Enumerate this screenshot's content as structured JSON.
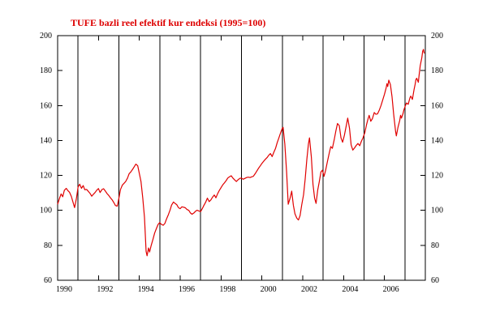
{
  "chart_data": {
    "type": "line",
    "title": "TUFE bazli reel efektif kur endeksi (1995=100)",
    "xlabel": "",
    "ylabel": "",
    "title_color": "#dd0000",
    "line_color": "#e00000",
    "axis_color": "#000000",
    "background_color": "#ffffff",
    "xlim": [
      1990,
      2008
    ],
    "ylim": [
      60,
      200
    ],
    "y_ticks": [
      60,
      80,
      100,
      120,
      140,
      160,
      180,
      200
    ],
    "y_tick_labels": [
      "60",
      "80",
      "100",
      "120",
      "140",
      "160",
      "180",
      "200"
    ],
    "y_axis_sides": [
      "left",
      "right"
    ],
    "x_tick_years": [
      1990,
      1992,
      1994,
      1996,
      1998,
      2000,
      2002,
      2004,
      2006
    ],
    "x_tick_labels": [
      "1990",
      "1992",
      "1994",
      "1996",
      "1998",
      "2000",
      "2002",
      "2004",
      "2006"
    ],
    "gridline_years": [
      1991,
      1993,
      1995,
      1997,
      1999,
      2001,
      2003,
      2005,
      2007
    ],
    "grid": "vertical-only",
    "legend": "none",
    "series": [
      {
        "name": "TUFE bazli reel efektif kur endeksi (1995=100)",
        "points": [
          [
            1990.0,
            103.5
          ],
          [
            1990.08,
            106.5
          ],
          [
            1990.17,
            109.4
          ],
          [
            1990.25,
            107.8
          ],
          [
            1990.33,
            111.5
          ],
          [
            1990.42,
            112.6
          ],
          [
            1990.5,
            111.3
          ],
          [
            1990.58,
            110.4
          ],
          [
            1990.67,
            108.0
          ],
          [
            1990.75,
            104.8
          ],
          [
            1990.83,
            101.6
          ],
          [
            1990.92,
            107.0
          ],
          [
            1991.0,
            113.4
          ],
          [
            1991.08,
            115.0
          ],
          [
            1991.17,
            112.6
          ],
          [
            1991.25,
            114.2
          ],
          [
            1991.33,
            111.8
          ],
          [
            1991.42,
            112.0
          ],
          [
            1991.5,
            110.9
          ],
          [
            1991.58,
            109.8
          ],
          [
            1991.67,
            108.1
          ],
          [
            1991.75,
            109.2
          ],
          [
            1991.83,
            110.2
          ],
          [
            1991.92,
            111.6
          ],
          [
            1992.0,
            112.5
          ],
          [
            1992.08,
            110.2
          ],
          [
            1992.17,
            111.9
          ],
          [
            1992.25,
            112.4
          ],
          [
            1992.33,
            111.2
          ],
          [
            1992.42,
            109.6
          ],
          [
            1992.5,
            108.6
          ],
          [
            1992.58,
            107.3
          ],
          [
            1992.67,
            106.0
          ],
          [
            1992.75,
            104.5
          ],
          [
            1992.83,
            102.8
          ],
          [
            1992.92,
            102.4
          ],
          [
            1993.0,
            107.0
          ],
          [
            1993.08,
            112.0
          ],
          [
            1993.17,
            114.5
          ],
          [
            1993.25,
            115.5
          ],
          [
            1993.33,
            116.5
          ],
          [
            1993.42,
            118.5
          ],
          [
            1993.5,
            121.0
          ],
          [
            1993.58,
            122.0
          ],
          [
            1993.67,
            123.5
          ],
          [
            1993.75,
            125.0
          ],
          [
            1993.83,
            126.5
          ],
          [
            1993.92,
            125.5
          ],
          [
            1994.0,
            121.0
          ],
          [
            1994.08,
            116.5
          ],
          [
            1994.17,
            107.0
          ],
          [
            1994.25,
            96.0
          ],
          [
            1994.33,
            76.5
          ],
          [
            1994.38,
            74.0
          ],
          [
            1994.45,
            78.5
          ],
          [
            1994.5,
            76.2
          ],
          [
            1994.58,
            80.0
          ],
          [
            1994.67,
            83.5
          ],
          [
            1994.75,
            87.0
          ],
          [
            1994.83,
            89.5
          ],
          [
            1994.92,
            92.0
          ],
          [
            1995.0,
            93.0
          ],
          [
            1995.08,
            92.0
          ],
          [
            1995.17,
            91.5
          ],
          [
            1995.25,
            92.5
          ],
          [
            1995.33,
            95.0
          ],
          [
            1995.42,
            97.5
          ],
          [
            1995.5,
            100.0
          ],
          [
            1995.58,
            103.0
          ],
          [
            1995.67,
            104.8
          ],
          [
            1995.75,
            104.0
          ],
          [
            1995.83,
            103.3
          ],
          [
            1995.92,
            101.5
          ],
          [
            1996.0,
            101.0
          ],
          [
            1996.08,
            102.0
          ],
          [
            1996.17,
            101.8
          ],
          [
            1996.25,
            101.5
          ],
          [
            1996.33,
            100.5
          ],
          [
            1996.42,
            100.0
          ],
          [
            1996.5,
            98.5
          ],
          [
            1996.58,
            97.8
          ],
          [
            1996.67,
            98.5
          ],
          [
            1996.75,
            99.5
          ],
          [
            1996.83,
            100.1
          ],
          [
            1996.92,
            99.6
          ],
          [
            1997.0,
            99.3
          ],
          [
            1997.08,
            101.0
          ],
          [
            1997.17,
            103.0
          ],
          [
            1997.25,
            104.8
          ],
          [
            1997.33,
            107.0
          ],
          [
            1997.42,
            105.0
          ],
          [
            1997.5,
            106.0
          ],
          [
            1997.58,
            107.5
          ],
          [
            1997.67,
            108.8
          ],
          [
            1997.75,
            107.2
          ],
          [
            1997.83,
            109.5
          ],
          [
            1997.92,
            111.5
          ],
          [
            1998.0,
            113.0
          ],
          [
            1998.08,
            114.5
          ],
          [
            1998.17,
            115.8
          ],
          [
            1998.25,
            117.0
          ],
          [
            1998.33,
            118.5
          ],
          [
            1998.42,
            119.3
          ],
          [
            1998.5,
            119.8
          ],
          [
            1998.58,
            118.5
          ],
          [
            1998.67,
            117.4
          ],
          [
            1998.75,
            116.5
          ],
          [
            1998.83,
            117.5
          ],
          [
            1998.92,
            118.3
          ],
          [
            1999.0,
            118.5
          ],
          [
            1999.08,
            117.8
          ],
          [
            1999.17,
            118.3
          ],
          [
            1999.25,
            118.8
          ],
          [
            1999.33,
            119.0
          ],
          [
            1999.42,
            118.8
          ],
          [
            1999.5,
            119.2
          ],
          [
            1999.58,
            119.5
          ],
          [
            1999.67,
            121.0
          ],
          [
            1999.75,
            122.5
          ],
          [
            1999.83,
            124.0
          ],
          [
            1999.92,
            125.5
          ],
          [
            2000.0,
            126.9
          ],
          [
            2000.08,
            128.0
          ],
          [
            2000.17,
            129.2
          ],
          [
            2000.25,
            130.2
          ],
          [
            2000.33,
            131.5
          ],
          [
            2000.42,
            132.5
          ],
          [
            2000.5,
            130.8
          ],
          [
            2000.58,
            133.2
          ],
          [
            2000.67,
            135.5
          ],
          [
            2000.75,
            138.7
          ],
          [
            2000.83,
            141.5
          ],
          [
            2000.92,
            144.5
          ],
          [
            2001.0,
            147.0
          ],
          [
            2001.04,
            147.5
          ],
          [
            2001.12,
            138.0
          ],
          [
            2001.21,
            122.0
          ],
          [
            2001.29,
            103.5
          ],
          [
            2001.38,
            107.0
          ],
          [
            2001.46,
            111.0
          ],
          [
            2001.54,
            103.0
          ],
          [
            2001.62,
            98.0
          ],
          [
            2001.71,
            95.5
          ],
          [
            2001.79,
            94.5
          ],
          [
            2001.87,
            97.0
          ],
          [
            2001.95,
            103.0
          ],
          [
            2002.04,
            109.0
          ],
          [
            2002.12,
            118.0
          ],
          [
            2002.2,
            129.0
          ],
          [
            2002.28,
            138.0
          ],
          [
            2002.33,
            141.5
          ],
          [
            2002.42,
            130.5
          ],
          [
            2002.5,
            115.0
          ],
          [
            2002.58,
            107.0
          ],
          [
            2002.65,
            104.0
          ],
          [
            2002.73,
            111.5
          ],
          [
            2002.81,
            116.5
          ],
          [
            2002.89,
            122.0
          ],
          [
            2002.96,
            123.0
          ],
          [
            2003.04,
            119.5
          ],
          [
            2003.12,
            123.0
          ],
          [
            2003.2,
            127.5
          ],
          [
            2003.29,
            132.5
          ],
          [
            2003.37,
            136.5
          ],
          [
            2003.45,
            135.5
          ],
          [
            2003.54,
            140.5
          ],
          [
            2003.62,
            145.5
          ],
          [
            2003.7,
            149.7
          ],
          [
            2003.79,
            148.5
          ],
          [
            2003.87,
            141.5
          ],
          [
            2003.95,
            139.0
          ],
          [
            2004.04,
            143.0
          ],
          [
            2004.12,
            148.0
          ],
          [
            2004.2,
            152.8
          ],
          [
            2004.29,
            147.0
          ],
          [
            2004.37,
            137.5
          ],
          [
            2004.45,
            134.5
          ],
          [
            2004.54,
            135.8
          ],
          [
            2004.62,
            137.2
          ],
          [
            2004.7,
            138.3
          ],
          [
            2004.79,
            137.0
          ],
          [
            2004.87,
            139.5
          ],
          [
            2004.95,
            141.5
          ],
          [
            2005.04,
            144.5
          ],
          [
            2005.12,
            148.9
          ],
          [
            2005.2,
            152.5
          ],
          [
            2005.25,
            154.4
          ],
          [
            2005.33,
            151.0
          ],
          [
            2005.41,
            152.5
          ],
          [
            2005.5,
            156.0
          ],
          [
            2005.58,
            155.0
          ],
          [
            2005.66,
            155.2
          ],
          [
            2005.75,
            157.5
          ],
          [
            2005.83,
            160.0
          ],
          [
            2005.91,
            163.0
          ],
          [
            2006.0,
            166.5
          ],
          [
            2006.08,
            170.0
          ],
          [
            2006.12,
            172.5
          ],
          [
            2006.16,
            170.9
          ],
          [
            2006.21,
            174.5
          ],
          [
            2006.29,
            172.0
          ],
          [
            2006.37,
            165.0
          ],
          [
            2006.45,
            155.0
          ],
          [
            2006.54,
            145.5
          ],
          [
            2006.58,
            142.6
          ],
          [
            2006.66,
            147.5
          ],
          [
            2006.75,
            151.5
          ],
          [
            2006.79,
            154.4
          ],
          [
            2006.83,
            152.8
          ],
          [
            2006.91,
            155.5
          ],
          [
            2006.95,
            157.5
          ],
          [
            2007.0,
            159.1
          ],
          [
            2007.08,
            161.5
          ],
          [
            2007.16,
            160.7
          ],
          [
            2007.25,
            164.5
          ],
          [
            2007.29,
            165.4
          ],
          [
            2007.37,
            163.5
          ],
          [
            2007.45,
            169.3
          ],
          [
            2007.5,
            172.0
          ],
          [
            2007.54,
            174.8
          ],
          [
            2007.58,
            175.6
          ],
          [
            2007.66,
            173.3
          ],
          [
            2007.7,
            178.0
          ],
          [
            2007.75,
            182.7
          ],
          [
            2007.83,
            187.4
          ],
          [
            2007.87,
            191.0
          ],
          [
            2007.91,
            192.1
          ],
          [
            2007.95,
            189.8
          ]
        ]
      }
    ]
  }
}
